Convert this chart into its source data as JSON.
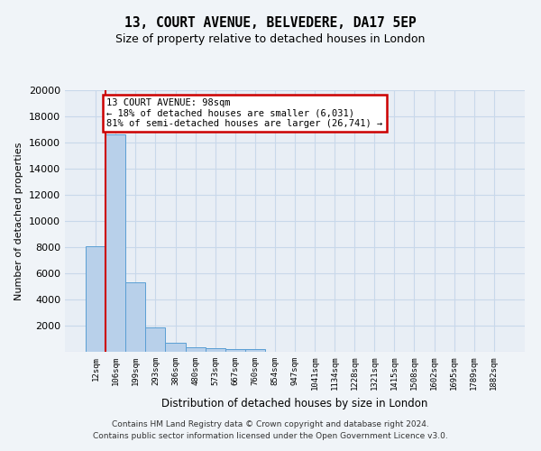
{
  "title": "13, COURT AVENUE, BELVEDERE, DA17 5EP",
  "subtitle": "Size of property relative to detached houses in London",
  "xlabel": "Distribution of detached houses by size in London",
  "ylabel": "Number of detached properties",
  "bar_labels": [
    "12sqm",
    "106sqm",
    "199sqm",
    "293sqm",
    "386sqm",
    "480sqm",
    "573sqm",
    "667sqm",
    "760sqm",
    "854sqm",
    "947sqm",
    "1041sqm",
    "1134sqm",
    "1228sqm",
    "1321sqm",
    "1415sqm",
    "1508sqm",
    "1602sqm",
    "1695sqm",
    "1789sqm",
    "1882sqm"
  ],
  "bar_values": [
    8100,
    16600,
    5300,
    1850,
    700,
    350,
    270,
    220,
    180,
    0,
    0,
    0,
    0,
    0,
    0,
    0,
    0,
    0,
    0,
    0,
    0
  ],
  "bar_color": "#b8d0ea",
  "bar_edge_color": "#5a9fd4",
  "grid_color": "#c8d8ea",
  "annotation_line1": "13 COURT AVENUE: 98sqm",
  "annotation_line2": "← 18% of detached houses are smaller (6,031)",
  "annotation_line3": "81% of semi-detached houses are larger (26,741) →",
  "vline_color": "#cc0000",
  "annotation_box_edge": "#cc0000",
  "ylim": [
    0,
    20000
  ],
  "yticks": [
    0,
    2000,
    4000,
    6000,
    8000,
    10000,
    12000,
    14000,
    16000,
    18000,
    20000
  ],
  "footer_line1": "Contains HM Land Registry data © Crown copyright and database right 2024.",
  "footer_line2": "Contains public sector information licensed under the Open Government Licence v3.0.",
  "bg_color": "#f0f4f8",
  "plot_bg_color": "#e8eef5"
}
